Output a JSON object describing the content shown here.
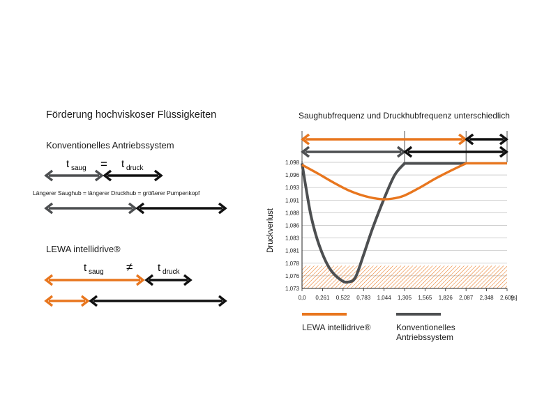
{
  "left": {
    "title": "Förderung hochviskoser Flüssigkeiten",
    "conventional": {
      "heading": "Konventionelles Antriebssystem",
      "t_main": "t",
      "saug_sub": "saug",
      "druck_sub": "druck",
      "relation": "=",
      "note": "Längerer Saughub = längerer Druckhub = größerer Pumpenkopf"
    },
    "lewa": {
      "heading": "LEWA intellidrive®",
      "t_main": "t",
      "saug_sub": "saug",
      "druck_sub": "druck",
      "relation": "≠"
    }
  },
  "colors": {
    "orange": "#e8761e",
    "gray": "#4d4f51",
    "black": "#111111",
    "hatch": "#e8761e",
    "grid": "#bdbdbd"
  },
  "chart_data": {
    "type": "line",
    "title": "Saughubfrequenz und Druckhubfrequenz unterschiedlich",
    "ylabel": "Druckverlust",
    "xunit": "[s]",
    "xlim": [
      0,
      2.609
    ],
    "ylim": [
      1.073,
      1.098
    ],
    "x_ticks": [
      "0,0",
      "0,261",
      "0,522",
      "0,783",
      "1,044",
      "1,305",
      "1,565",
      "1,826",
      "2,087",
      "2,348",
      "2,609"
    ],
    "x_tick_values": [
      0,
      0.261,
      0.522,
      0.783,
      1.044,
      1.305,
      1.565,
      1.826,
      2.087,
      2.348,
      2.609
    ],
    "y_ticks": [
      "1,098",
      "1,096",
      "1,093",
      "1,091",
      "1,088",
      "1,086",
      "1,083",
      "1,081",
      "1,078",
      "1,076",
      "1,073"
    ],
    "y_tick_values": [
      1.098,
      1.096,
      1.093,
      1.091,
      1.088,
      1.086,
      1.083,
      1.081,
      1.078,
      1.076,
      1.073
    ],
    "hatched_band": [
      1.073,
      1.0775
    ],
    "series": [
      {
        "name": "LEWA intellidrive®",
        "color": "#e8761e",
        "x": [
          0,
          0.2,
          0.4,
          0.6,
          0.8,
          1.0,
          1.15,
          1.3,
          1.5,
          1.7,
          1.9,
          2.087,
          2.609
        ],
        "y": [
          1.0975,
          1.0958,
          1.094,
          1.0924,
          1.0913,
          1.0907,
          1.0908,
          1.0914,
          1.093,
          1.0948,
          1.0964,
          1.0978,
          1.0978
        ]
      },
      {
        "name": "Konventionelles Antriebssystem",
        "color": "#4d4f51",
        "x": [
          0,
          0.05,
          0.12,
          0.22,
          0.35,
          0.5,
          0.6,
          0.68,
          0.78,
          0.9,
          1.05,
          1.18,
          1.305,
          2.087
        ],
        "y": [
          1.0978,
          1.093,
          1.087,
          1.0815,
          1.077,
          1.0746,
          1.0743,
          1.0752,
          1.0795,
          1.085,
          1.091,
          1.0955,
          1.0978,
          1.0978
        ]
      }
    ],
    "top_arrows": [
      {
        "from": 0,
        "to": 2.087,
        "color": "#e8761e",
        "row": 1
      },
      {
        "from": 2.087,
        "to": 2.609,
        "color": "#111111",
        "row": 1
      },
      {
        "from": 0,
        "to": 1.305,
        "color": "#4d4f51",
        "row": 2
      },
      {
        "from": 1.305,
        "to": 2.609,
        "color": "#111111",
        "row": 2
      }
    ],
    "legend": [
      {
        "label_lines": [
          "LEWA intellidrive®"
        ],
        "color": "#e8761e"
      },
      {
        "label_lines": [
          "Konventionelles",
          "Antriebssystem"
        ],
        "color": "#4d4f51"
      }
    ]
  }
}
